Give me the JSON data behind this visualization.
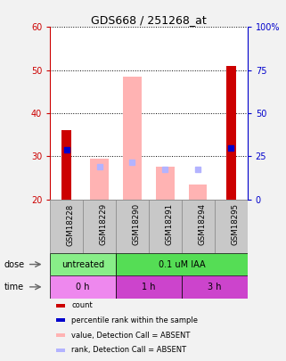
{
  "title": "GDS668 / 251268_at",
  "samples": [
    "GSM18228",
    "GSM18229",
    "GSM18290",
    "GSM18291",
    "GSM18294",
    "GSM18295"
  ],
  "count_values": [
    36,
    0,
    0,
    0,
    0,
    51
  ],
  "count_color": "#cc0000",
  "percentile_rank_values": [
    28.5,
    0,
    0,
    0,
    0,
    30
  ],
  "percentile_rank_color": "#0000cc",
  "absent_value_tops": [
    20,
    29.5,
    48.5,
    27.5,
    23.5,
    20
  ],
  "absent_value_bottoms": [
    20,
    20,
    20,
    20,
    20,
    20
  ],
  "absent_value_active": [
    false,
    true,
    true,
    true,
    true,
    false
  ],
  "absent_rank_values": [
    0,
    27.5,
    28.5,
    27.0,
    27.0,
    0
  ],
  "absent_rank_active": [
    false,
    true,
    true,
    true,
    true,
    false
  ],
  "absent_value_color": "#ffb3b3",
  "absent_rank_color": "#b3b3ff",
  "ylim_left": [
    20,
    60
  ],
  "ylim_right": [
    0,
    100
  ],
  "yticks_left": [
    20,
    30,
    40,
    50,
    60
  ],
  "yticks_right": [
    0,
    25,
    50,
    75,
    100
  ],
  "ytick_labels_right": [
    "0",
    "25",
    "50",
    "75",
    "100%"
  ],
  "left_axis_color": "#cc0000",
  "right_axis_color": "#0000cc",
  "dose_groups": [
    {
      "label": "untreated",
      "cols": [
        0,
        1
      ],
      "color": "#88ee88"
    },
    {
      "label": "0.1 uM IAA",
      "cols": [
        2,
        3,
        4,
        5
      ],
      "color": "#55dd55"
    }
  ],
  "time_groups": [
    {
      "label": "0 h",
      "cols": [
        0,
        1
      ],
      "color": "#ee88ee"
    },
    {
      "label": "1 h",
      "cols": [
        2,
        3
      ],
      "color": "#cc44cc"
    },
    {
      "label": "3 h",
      "cols": [
        4,
        5
      ],
      "color": "#cc44cc"
    }
  ],
  "dose_label": "dose",
  "time_label": "time",
  "legend_items": [
    {
      "label": "count",
      "color": "#cc0000"
    },
    {
      "label": "percentile rank within the sample",
      "color": "#0000cc"
    },
    {
      "label": "value, Detection Call = ABSENT",
      "color": "#ffb3b3"
    },
    {
      "label": "rank, Detection Call = ABSENT",
      "color": "#b3b3ff"
    }
  ],
  "plot_bg_color": "#ffffff",
  "sample_label_bg": "#c8c8c8",
  "grid_color": "#000000"
}
